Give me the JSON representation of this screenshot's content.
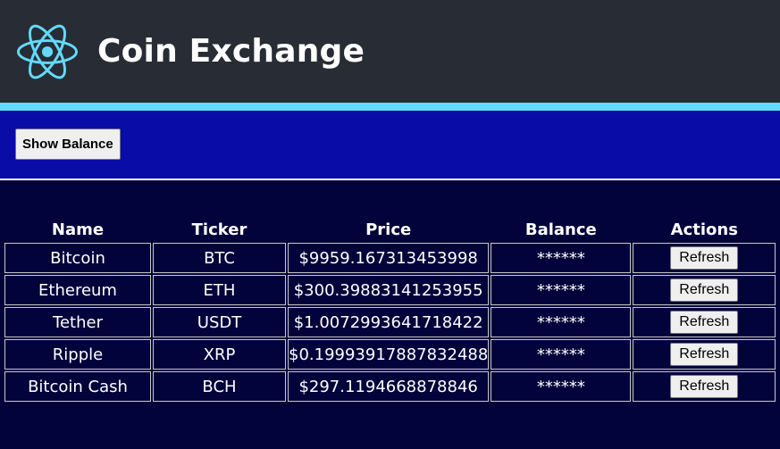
{
  "header": {
    "title": "Coin Exchange",
    "logo_icon": "react-atom-icon",
    "background_color": "#282c34",
    "accent_color": "#61dafb"
  },
  "balance_section": {
    "button_label": "Show Balance",
    "background_color": "#0a0ca8"
  },
  "table": {
    "columns": [
      "Name",
      "Ticker",
      "Price",
      "Balance",
      "Actions"
    ],
    "rows": [
      {
        "name": "Bitcoin",
        "ticker": "BTC",
        "price": "$9959.167313453998",
        "balance": "******",
        "action": "Refresh"
      },
      {
        "name": "Ethereum",
        "ticker": "ETH",
        "price": "$300.39883141253955",
        "balance": "******",
        "action": "Refresh"
      },
      {
        "name": "Tether",
        "ticker": "USDT",
        "price": "$1.0072993641718422",
        "balance": "******",
        "action": "Refresh"
      },
      {
        "name": "Ripple",
        "ticker": "XRP",
        "price": "$0.19993917887832488",
        "balance": "******",
        "action": "Refresh"
      },
      {
        "name": "Bitcoin Cash",
        "ticker": "BCH",
        "price": "$297.1194668878846",
        "balance": "******",
        "action": "Refresh"
      }
    ]
  },
  "page_background": "#02033a"
}
